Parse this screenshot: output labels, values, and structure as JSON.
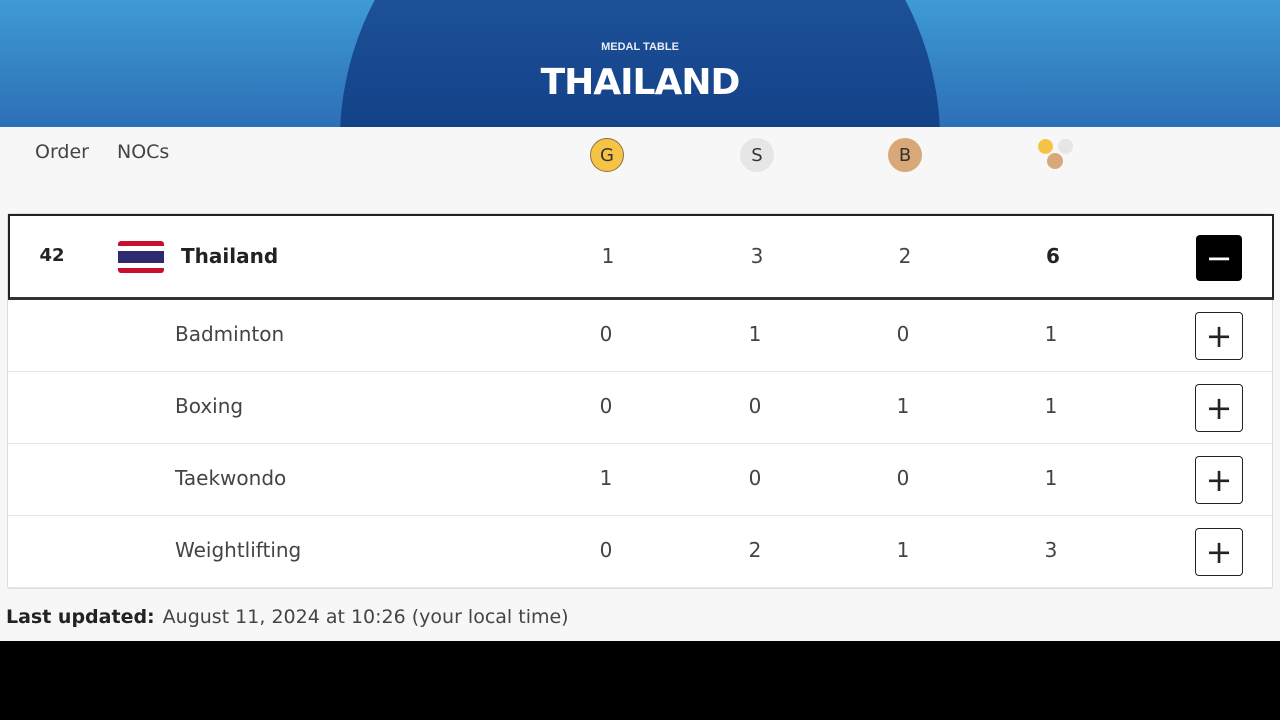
{
  "header": {
    "kicker": "MEDAL TABLE",
    "title": "THAILAND"
  },
  "columns": {
    "order": "Order",
    "nocs": "NOCs",
    "gold": "G",
    "silver": "S",
    "bronze": "B"
  },
  "colors": {
    "gold": "#f6c445",
    "silver": "#e6e6e6",
    "bronze": "#d8a878"
  },
  "country": {
    "rank": "42",
    "name": "Thailand",
    "gold": "1",
    "silver": "3",
    "bronze": "2",
    "total": "6",
    "toggle": "−"
  },
  "sports": [
    {
      "name": "Badminton",
      "gold": "0",
      "silver": "1",
      "bronze": "0",
      "total": "1",
      "toggle": "+"
    },
    {
      "name": "Boxing",
      "gold": "0",
      "silver": "0",
      "bronze": "1",
      "total": "1",
      "toggle": "+"
    },
    {
      "name": "Taekwondo",
      "gold": "1",
      "silver": "0",
      "bronze": "0",
      "total": "1",
      "toggle": "+"
    },
    {
      "name": "Weightlifting",
      "gold": "0",
      "silver": "2",
      "bronze": "1",
      "total": "3",
      "toggle": "+"
    }
  ],
  "footer": {
    "label": "Last updated:",
    "value": "August 11, 2024 at 10:26 (your local time)"
  }
}
